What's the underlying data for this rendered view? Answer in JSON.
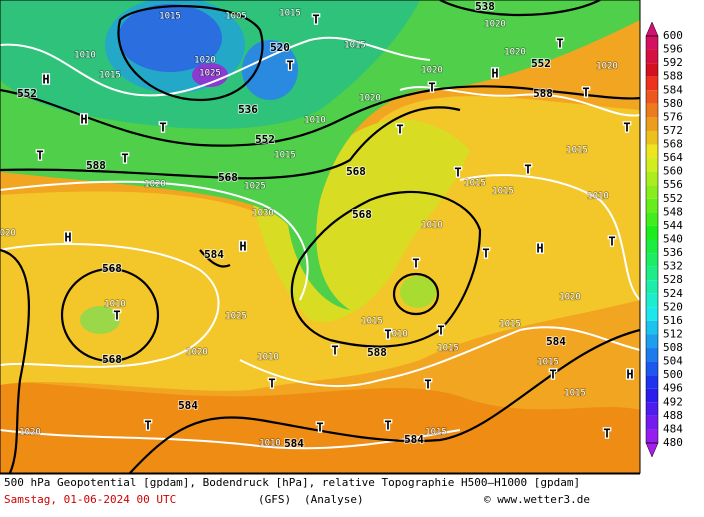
{
  "map": {
    "contour_labels": [
      "552",
      "588",
      "568",
      "568",
      "568",
      "552",
      "536",
      "520",
      "538",
      "552",
      "588",
      "584",
      "568",
      "568",
      "584",
      "588",
      "584",
      "584",
      "584"
    ],
    "isobar_labels": [
      "1015",
      "1005",
      "1015",
      "1015",
      "1010",
      "1015",
      "1020",
      "1025",
      "1020",
      "1010",
      "1015",
      "1020",
      "1025",
      "1030",
      "1020",
      "1015",
      "1015",
      "1010",
      "1015",
      "1010",
      "1020",
      "1020",
      "1025",
      "1010",
      "1010",
      "1015",
      "1010",
      "1015",
      "1015",
      "1015",
      "1015",
      "1020",
      "1010",
      "1015",
      "1020",
      "1020",
      "1020",
      "1020"
    ],
    "pressure_centers": [
      "H",
      "H",
      "T",
      "T",
      "H",
      "T",
      "H",
      "T",
      "T",
      "T",
      "T",
      "T",
      "H",
      "T",
      "T",
      "T",
      "T",
      "T",
      "T",
      "T",
      "H",
      "T",
      "T",
      "T",
      "H",
      "T",
      "T",
      "T",
      "T",
      "T",
      "T",
      "T",
      "T"
    ]
  },
  "colorbar": {
    "labels": [
      600,
      596,
      592,
      588,
      584,
      580,
      576,
      572,
      568,
      564,
      560,
      556,
      552,
      548,
      544,
      540,
      536,
      532,
      528,
      524,
      520,
      516,
      512,
      508,
      504,
      500,
      496,
      492,
      488,
      484,
      480
    ]
  },
  "footer": {
    "description": "500 hPa Geopotential [gpdam], Bodendruck [hPa], relative Topographie H500–H1000 [gpdam]",
    "date": "Samstag, 01-06-2024  00 UTC",
    "model": "(GFS)",
    "run": "(Analyse)",
    "source": "© www.wetter3.de"
  }
}
